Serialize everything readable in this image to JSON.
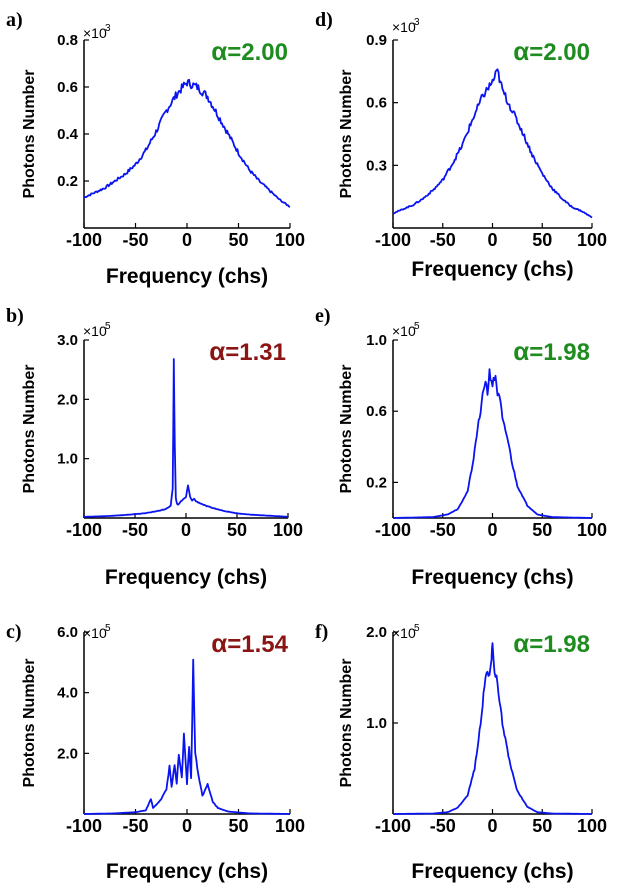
{
  "colors": {
    "line": "#0a14f0",
    "green": "#1e8c1e",
    "darkred": "#8b1414",
    "axis": "#000000"
  },
  "chart_data": [
    {
      "panel": "a)",
      "type": "line",
      "multiplier": "×10",
      "multiplier_exp": "3",
      "ylabel": "Photons Number",
      "xlabel": "Frequency (chs)",
      "xlim": [
        -100,
        100
      ],
      "ylim": [
        0,
        0.8
      ],
      "xticks": [
        "-100",
        "-50",
        "0",
        "50",
        "100"
      ],
      "yticks": [
        {
          "v": 0.2,
          "label": "0.2"
        },
        {
          "v": 0.4,
          "label": "0.4"
        },
        {
          "v": 0.6,
          "label": "0.6"
        },
        {
          "v": 0.8,
          "label": "0.8"
        }
      ],
      "alpha_label": "α",
      "alpha_value": "=2.00",
      "alpha_color": "green",
      "x": [
        -100,
        -90,
        -80,
        -70,
        -60,
        -50,
        -40,
        -30,
        -20,
        -10,
        0,
        10,
        20,
        30,
        40,
        50,
        60,
        70,
        80,
        90,
        100
      ],
      "values": [
        0.13,
        0.15,
        0.17,
        0.2,
        0.23,
        0.27,
        0.33,
        0.41,
        0.5,
        0.57,
        0.62,
        0.6,
        0.56,
        0.48,
        0.4,
        0.32,
        0.25,
        0.2,
        0.16,
        0.12,
        0.09
      ]
    },
    {
      "panel": "b)",
      "type": "line",
      "multiplier": "×10",
      "multiplier_exp": "5",
      "ylabel": "Photons Number",
      "xlabel": "Frequency (chs)",
      "xlim": [
        -100,
        100
      ],
      "ylim": [
        0,
        3.0
      ],
      "xticks": [
        "-100",
        "-50",
        "0",
        "50",
        "100"
      ],
      "yticks": [
        {
          "v": 1.0,
          "label": "1.0"
        },
        {
          "v": 2.0,
          "label": "2.0"
        },
        {
          "v": 3.0,
          "label": "3.0"
        }
      ],
      "alpha_label": "α",
      "alpha_value": "=1.31",
      "alpha_color": "darkred",
      "x": [
        -100,
        -80,
        -60,
        -40,
        -30,
        -20,
        -15,
        -13,
        -12,
        -11,
        -10,
        -9,
        -8,
        -5,
        0,
        2,
        4,
        6,
        8,
        10,
        20,
        30,
        40,
        50,
        60,
        80,
        100
      ],
      "values": [
        0.02,
        0.03,
        0.05,
        0.08,
        0.11,
        0.15,
        0.2,
        0.5,
        2.66,
        1.2,
        0.35,
        0.25,
        0.22,
        0.28,
        0.35,
        0.55,
        0.35,
        0.3,
        0.32,
        0.28,
        0.2,
        0.15,
        0.11,
        0.08,
        0.06,
        0.04,
        0.02
      ]
    },
    {
      "panel": "c)",
      "type": "line",
      "multiplier": "×10",
      "multiplier_exp": "5",
      "ylabel": "Photons Number",
      "xlabel": "Frequency (chs)",
      "xlim": [
        -100,
        100
      ],
      "ylim": [
        0,
        6.0
      ],
      "xticks": [
        "-100",
        "-50",
        "0",
        "50",
        "100"
      ],
      "yticks": [
        {
          "v": 2.0,
          "label": "2.0"
        },
        {
          "v": 4.0,
          "label": "4.0"
        },
        {
          "v": 6.0,
          "label": "6.0"
        }
      ],
      "alpha_label": "α",
      "alpha_value": "=1.54",
      "alpha_color": "darkred",
      "x": [
        -100,
        -70,
        -50,
        -40,
        -35,
        -33,
        -30,
        -25,
        -20,
        -17,
        -15,
        -12,
        -10,
        -8,
        -5,
        -3,
        0,
        2,
        4,
        6,
        8,
        10,
        15,
        20,
        25,
        30,
        40,
        60,
        100
      ],
      "values": [
        0.0,
        0.02,
        0.06,
        0.12,
        0.5,
        0.2,
        0.3,
        0.5,
        0.8,
        1.6,
        0.9,
        1.6,
        1.0,
        1.9,
        1.2,
        2.6,
        1.0,
        2.2,
        1.2,
        5.0,
        2.0,
        1.5,
        0.6,
        1.0,
        0.4,
        0.2,
        0.08,
        0.02,
        0.0
      ]
    },
    {
      "panel": "d)",
      "type": "line",
      "multiplier": "×10",
      "multiplier_exp": "3",
      "ylabel": "Photons Number",
      "xlabel": "Frequency (chs)",
      "xlim": [
        -100,
        100
      ],
      "ylim": [
        0,
        0.9
      ],
      "xticks": [
        "-100",
        "-50",
        "0",
        "50",
        "100"
      ],
      "yticks": [
        {
          "v": 0.3,
          "label": "0.3"
        },
        {
          "v": 0.6,
          "label": "0.6"
        },
        {
          "v": 0.9,
          "label": "0.9"
        }
      ],
      "alpha_label": "α",
      "alpha_value": "=2.00",
      "alpha_color": "green",
      "x": [
        -100,
        -90,
        -80,
        -70,
        -60,
        -50,
        -40,
        -30,
        -20,
        -10,
        0,
        5,
        10,
        20,
        30,
        40,
        50,
        60,
        70,
        80,
        90,
        100
      ],
      "values": [
        0.07,
        0.09,
        0.11,
        0.14,
        0.18,
        0.23,
        0.31,
        0.4,
        0.52,
        0.63,
        0.7,
        0.75,
        0.66,
        0.56,
        0.46,
        0.35,
        0.26,
        0.19,
        0.14,
        0.1,
        0.08,
        0.05
      ]
    },
    {
      "panel": "e)",
      "type": "line",
      "multiplier": "×10",
      "multiplier_exp": "5",
      "ylabel": "Photons Number",
      "xlabel": "Frequency (chs)",
      "xlim": [
        -100,
        100
      ],
      "ylim": [
        0,
        1.0
      ],
      "xticks": [
        "-100",
        "-50",
        "0",
        "50",
        "100"
      ],
      "yticks": [
        {
          "v": 0.2,
          "label": "0.2"
        },
        {
          "v": 0.6,
          "label": "0.6"
        },
        {
          "v": 1.0,
          "label": "1.0"
        }
      ],
      "alpha_label": "α",
      "alpha_value": "=1.98",
      "alpha_color": "green",
      "x": [
        -100,
        -60,
        -45,
        -35,
        -25,
        -20,
        -15,
        -10,
        -7,
        -5,
        -3,
        0,
        3,
        5,
        8,
        10,
        15,
        20,
        25,
        35,
        45,
        60,
        100
      ],
      "values": [
        0.0,
        0.005,
        0.02,
        0.05,
        0.15,
        0.3,
        0.5,
        0.68,
        0.78,
        0.7,
        0.82,
        0.75,
        0.8,
        0.7,
        0.65,
        0.55,
        0.45,
        0.3,
        0.18,
        0.07,
        0.02,
        0.005,
        0.0
      ]
    },
    {
      "panel": "f)",
      "type": "line",
      "multiplier": "×10",
      "multiplier_exp": "5",
      "ylabel": "Photons Number",
      "xlabel": "Frequency (chs)",
      "xlim": [
        -100,
        100
      ],
      "ylim": [
        0,
        2.0
      ],
      "xticks": [
        "-100",
        "-50",
        "0",
        "50",
        "100"
      ],
      "yticks": [
        {
          "v": 1.0,
          "label": "1.0"
        },
        {
          "v": 2.0,
          "label": "2.0"
        }
      ],
      "alpha_label": "α",
      "alpha_value": "=1.98",
      "alpha_color": "green",
      "x": [
        -100,
        -60,
        -45,
        -35,
        -25,
        -18,
        -12,
        -8,
        -5,
        -3,
        -1,
        0,
        2,
        4,
        6,
        10,
        15,
        20,
        25,
        35,
        45,
        60,
        100
      ],
      "values": [
        0.0,
        0.005,
        0.02,
        0.07,
        0.2,
        0.5,
        1.0,
        1.4,
        1.6,
        1.5,
        1.7,
        1.88,
        1.6,
        1.5,
        1.3,
        1.0,
        0.7,
        0.45,
        0.25,
        0.08,
        0.02,
        0.005,
        0.0
      ]
    }
  ]
}
